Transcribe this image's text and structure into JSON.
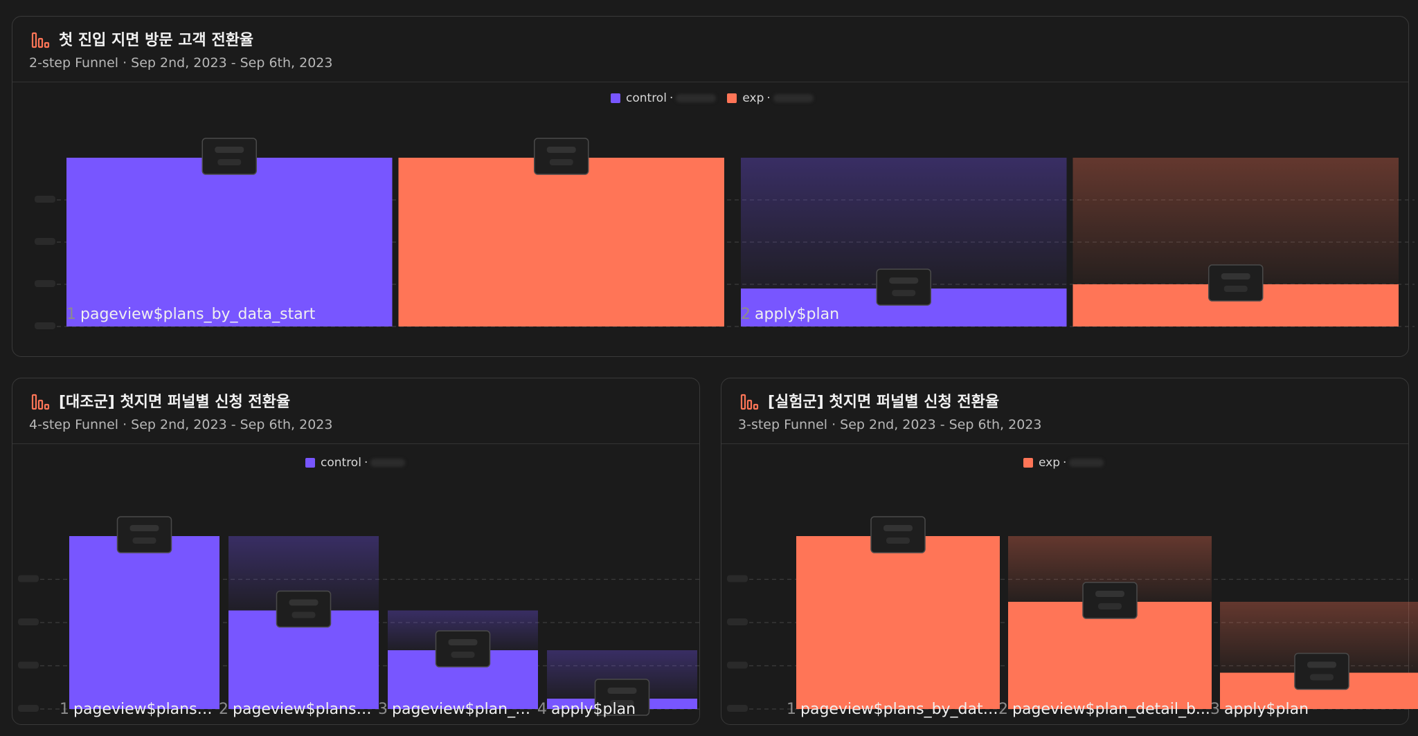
{
  "colors": {
    "control": "#7856ff",
    "exp": "#ff7557",
    "background": "#1b1b1b",
    "border": "#3a3a3a",
    "grid": "#3c3c3c"
  },
  "panels": [
    {
      "title": "첫 진입 지면 방문 고객 전환율",
      "subtitle": "2-step Funnel · Sep 2nd, 2023 - Sep 6th, 2023",
      "icon": "funnel-chart-icon",
      "legend": [
        {
          "label": "control",
          "color": "#7856ff"
        },
        {
          "label": "exp",
          "color": "#ff7557"
        }
      ]
    },
    {
      "title": "[대조군] 첫지면 퍼널별 신청 전환율",
      "subtitle": "4-step Funnel · Sep 2nd, 2023 - Sep 6th, 2023",
      "icon": "funnel-chart-icon",
      "legend": [
        {
          "label": "control",
          "color": "#7856ff"
        }
      ]
    },
    {
      "title": "[실험군] 첫지면 퍼널별 신청 전환율",
      "subtitle": "3-step Funnel · Sep 2nd, 2023 - Sep 6th, 2023",
      "icon": "funnel-chart-icon",
      "legend": [
        {
          "label": "exp",
          "color": "#ff7557"
        }
      ]
    }
  ],
  "chart_data": [
    {
      "type": "bar",
      "categories": [
        "pageview$plans_by_data_start",
        "apply$plan"
      ],
      "step_numbers": [
        "1",
        "2"
      ],
      "series": [
        {
          "name": "control",
          "values": [
            100,
            22.5
          ]
        },
        {
          "name": "exp",
          "values": [
            100,
            25
          ]
        }
      ],
      "ylim": [
        0,
        100
      ],
      "grid_values": [
        0,
        25,
        50,
        75
      ],
      "legend_position": "top-center"
    },
    {
      "type": "bar",
      "categories": [
        "pageview$plans_...",
        "pageview$plans_...",
        "pageview$plan_d...",
        "apply$plan"
      ],
      "step_numbers": [
        "1",
        "2",
        "3",
        "4"
      ],
      "series": [
        {
          "name": "control",
          "values": [
            100,
            57,
            34,
            6
          ]
        }
      ],
      "ylim": [
        0,
        100
      ],
      "grid_values": [
        0,
        25,
        50,
        75
      ],
      "legend_position": "top-center"
    },
    {
      "type": "bar",
      "categories": [
        "pageview$plans_by_data...",
        "pageview$plan_detail_b...",
        "apply$plan"
      ],
      "step_numbers": [
        "1",
        "2",
        "3"
      ],
      "series": [
        {
          "name": "exp",
          "values": [
            100,
            62,
            21
          ]
        }
      ],
      "ylim": [
        0,
        100
      ],
      "grid_values": [
        0,
        25,
        50,
        75
      ],
      "legend_position": "top-center"
    }
  ]
}
